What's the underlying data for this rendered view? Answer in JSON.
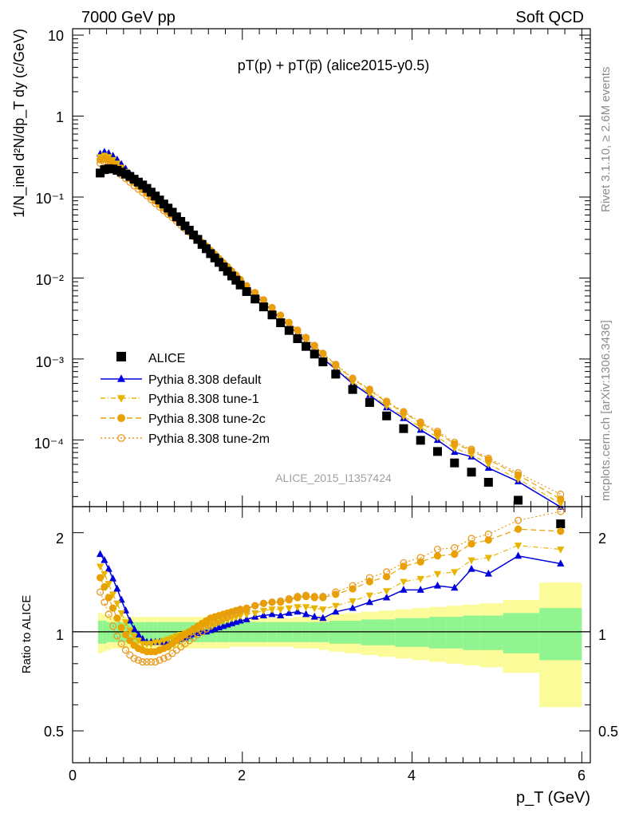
{
  "header": {
    "left": "7000 GeV pp",
    "right": "Soft QCD",
    "plot_title": "pT(p) + pT(p̅) (alice2015-y0.5)",
    "watermark": "ALICE_2015_I1357424"
  },
  "side_labels": {
    "rivet": "Rivet 3.1.10, ≥ 2.6M events",
    "mcplots": "mcplots.cern.ch [arXiv:1306.3436]"
  },
  "axes": {
    "ylabel_main": "1/N_inel d²N/dp_T dy (c/GeV)",
    "ylabel_ratio": "Ratio to ALICE",
    "xlabel": "p_T (GeV)",
    "main_yticks": [
      "10⁻⁴",
      "10⁻³",
      "10⁻²",
      "10⁻¹",
      "1",
      "10"
    ],
    "ratio_yticks": [
      "0.5",
      "1",
      "2"
    ],
    "xticks": [
      "0",
      "2",
      "4",
      "6"
    ]
  },
  "colors": {
    "data": "#000000",
    "default": "#0000dd",
    "tune1": "#e8b400",
    "tune2c": "#e8a100",
    "tune2m": "#e89a20",
    "band_inner": "#90f590",
    "band_outer": "#fbfb9a"
  },
  "chart_data": {
    "type": "scatter",
    "xlim": [
      0,
      6.1
    ],
    "ylim_main": [
      1.5e-05,
      12
    ],
    "ylog_main": true,
    "ylim_ratio": [
      0.4,
      2.4
    ],
    "ylog_ratio": true,
    "legend_position": "lower-left",
    "data": {
      "name": "ALICE",
      "x": [
        0.325,
        0.375,
        0.425,
        0.475,
        0.525,
        0.575,
        0.625,
        0.675,
        0.725,
        0.775,
        0.825,
        0.875,
        0.925,
        0.975,
        1.025,
        1.075,
        1.125,
        1.175,
        1.225,
        1.275,
        1.325,
        1.375,
        1.425,
        1.475,
        1.525,
        1.575,
        1.625,
        1.675,
        1.725,
        1.775,
        1.825,
        1.875,
        1.925,
        1.975,
        2.05,
        2.15,
        2.25,
        2.35,
        2.45,
        2.55,
        2.65,
        2.75,
        2.85,
        2.95,
        3.1,
        3.3,
        3.5,
        3.7,
        3.9,
        4.1,
        4.3,
        4.5,
        4.7,
        4.9,
        5.25,
        5.75
      ],
      "y": [
        0.198,
        0.218,
        0.224,
        0.222,
        0.214,
        0.203,
        0.192,
        0.18,
        0.166,
        0.153,
        0.141,
        0.128,
        0.115,
        0.103,
        0.092,
        0.082,
        0.073,
        0.065,
        0.057,
        0.05,
        0.044,
        0.039,
        0.034,
        0.03,
        0.026,
        0.023,
        0.02,
        0.0177,
        0.0156,
        0.0137,
        0.0121,
        0.0106,
        0.0094,
        0.0082,
        0.0068,
        0.0055,
        0.0044,
        0.0035,
        0.0028,
        0.00225,
        0.00178,
        0.00143,
        0.00115,
        0.00092,
        0.00065,
        0.00042,
        0.00029,
        0.000198,
        0.000138,
        9.9e-05,
        7.2e-05,
        5.2e-05,
        4e-05,
        3e-05,
        1.8e-05,
        9.2e-06
      ],
      "band_inner": [
        0.92,
        0.92,
        0.93,
        0.93,
        0.93,
        0.93,
        0.93,
        0.93,
        0.93,
        0.93,
        0.93,
        0.93,
        0.93,
        0.93,
        0.93,
        0.93,
        0.93,
        0.93,
        0.93,
        0.93,
        0.93,
        0.93,
        0.93,
        0.93,
        0.93,
        0.93,
        0.93,
        0.93,
        0.93,
        0.93,
        0.93,
        0.93,
        0.93,
        0.93,
        0.93,
        0.93,
        0.93,
        0.93,
        0.93,
        0.93,
        0.93,
        0.93,
        0.93,
        0.93,
        0.92,
        0.92,
        0.91,
        0.91,
        0.9,
        0.9,
        0.89,
        0.89,
        0.88,
        0.88,
        0.86,
        0.82
      ],
      "band_outer": [
        0.86,
        0.87,
        0.88,
        0.89,
        0.89,
        0.89,
        0.89,
        0.89,
        0.89,
        0.89,
        0.89,
        0.89,
        0.89,
        0.89,
        0.89,
        0.89,
        0.89,
        0.89,
        0.89,
        0.89,
        0.89,
        0.89,
        0.89,
        0.89,
        0.89,
        0.89,
        0.89,
        0.89,
        0.89,
        0.89,
        0.89,
        0.9,
        0.9,
        0.9,
        0.9,
        0.9,
        0.9,
        0.9,
        0.9,
        0.9,
        0.89,
        0.89,
        0.89,
        0.88,
        0.87,
        0.86,
        0.85,
        0.84,
        0.83,
        0.82,
        0.81,
        0.8,
        0.79,
        0.78,
        0.75,
        0.59
      ]
    },
    "series": [
      {
        "name": "Pythia 8.308 default",
        "key": "default",
        "marker": "triangle-up",
        "dash": "",
        "ratio": [
          1.72,
          1.65,
          1.55,
          1.45,
          1.35,
          1.25,
          1.16,
          1.08,
          1.02,
          0.98,
          0.95,
          0.93,
          0.93,
          0.93,
          0.93,
          0.93,
          0.93,
          0.93,
          0.94,
          0.95,
          0.96,
          0.97,
          0.98,
          0.99,
          1.0,
          1.0,
          1.01,
          1.02,
          1.03,
          1.04,
          1.05,
          1.06,
          1.07,
          1.08,
          1.09,
          1.11,
          1.12,
          1.13,
          1.12,
          1.14,
          1.15,
          1.13,
          1.11,
          1.1,
          1.15,
          1.18,
          1.23,
          1.27,
          1.34,
          1.34,
          1.38,
          1.36,
          1.55,
          1.5,
          1.7,
          1.61
        ]
      },
      {
        "name": "Pythia 8.308 tune-1",
        "key": "tune1",
        "marker": "triangle-down",
        "dash": "6,3,1,3",
        "ratio": [
          1.58,
          1.5,
          1.4,
          1.3,
          1.22,
          1.14,
          1.07,
          1.01,
          0.97,
          0.94,
          0.92,
          0.92,
          0.92,
          0.93,
          0.93,
          0.94,
          0.95,
          0.96,
          0.97,
          0.98,
          0.99,
          1.0,
          1.01,
          1.02,
          1.03,
          1.04,
          1.05,
          1.06,
          1.07,
          1.08,
          1.09,
          1.1,
          1.11,
          1.12,
          1.13,
          1.14,
          1.16,
          1.17,
          1.17,
          1.18,
          1.19,
          1.19,
          1.18,
          1.17,
          1.2,
          1.24,
          1.29,
          1.33,
          1.42,
          1.45,
          1.5,
          1.52,
          1.65,
          1.68,
          1.83,
          1.78
        ]
      },
      {
        "name": "Pythia 8.308 tune-2c",
        "key": "tune2c",
        "marker": "circle",
        "dash": "7,4",
        "ratio": [
          1.46,
          1.37,
          1.27,
          1.18,
          1.1,
          1.03,
          0.98,
          0.94,
          0.91,
          0.89,
          0.88,
          0.87,
          0.87,
          0.87,
          0.88,
          0.89,
          0.9,
          0.92,
          0.94,
          0.96,
          0.98,
          1.0,
          1.02,
          1.04,
          1.06,
          1.08,
          1.1,
          1.11,
          1.12,
          1.13,
          1.14,
          1.15,
          1.16,
          1.17,
          1.18,
          1.2,
          1.22,
          1.23,
          1.23,
          1.25,
          1.27,
          1.28,
          1.27,
          1.27,
          1.3,
          1.35,
          1.42,
          1.47,
          1.58,
          1.63,
          1.7,
          1.72,
          1.85,
          1.9,
          2.05,
          2.02
        ]
      },
      {
        "name": "Pythia 8.308 tune-2m",
        "key": "tune2m",
        "marker": "circle-open",
        "dash": "2,3",
        "ratio": [
          1.32,
          1.23,
          1.13,
          1.04,
          0.97,
          0.92,
          0.88,
          0.85,
          0.83,
          0.82,
          0.81,
          0.81,
          0.81,
          0.81,
          0.82,
          0.83,
          0.84,
          0.86,
          0.88,
          0.9,
          0.92,
          0.94,
          0.96,
          0.98,
          1.0,
          1.02,
          1.04,
          1.06,
          1.08,
          1.1,
          1.11,
          1.13,
          1.14,
          1.16,
          1.17,
          1.2,
          1.22,
          1.23,
          1.24,
          1.26,
          1.28,
          1.29,
          1.28,
          1.28,
          1.32,
          1.38,
          1.46,
          1.52,
          1.62,
          1.68,
          1.78,
          1.8,
          1.92,
          1.98,
          2.18,
          2.32
        ]
      }
    ]
  }
}
